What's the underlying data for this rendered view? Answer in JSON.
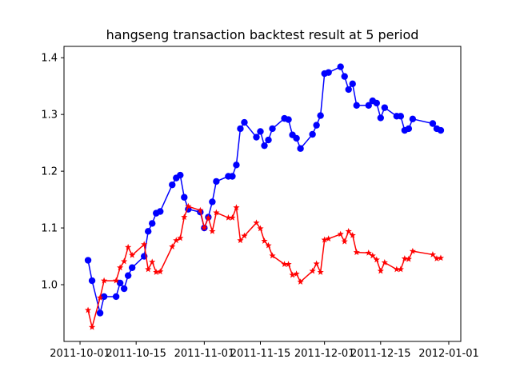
{
  "chart_data": {
    "type": "line",
    "title": "hangseng transaction backtest result at 5 period",
    "xlabel": "",
    "ylabel": "",
    "x_axis": "date",
    "xlim": [
      "2011-09-27",
      "2012-01-04"
    ],
    "ylim": [
      0.9,
      1.42
    ],
    "xticks": [
      {
        "value": "2011-10-01",
        "label": "2011-10-01"
      },
      {
        "value": "2011-10-15",
        "label": "2011-10-15"
      },
      {
        "value": "2011-11-01",
        "label": "2011-11-01"
      },
      {
        "value": "2011-11-15",
        "label": "2011-11-15"
      },
      {
        "value": "2011-12-01",
        "label": "2011-12-01"
      },
      {
        "value": "2011-12-15",
        "label": "2011-12-15"
      },
      {
        "value": "2012-01-01",
        "label": "2012-01-01"
      }
    ],
    "yticks": [
      {
        "value": 1.0,
        "label": "1.0"
      },
      {
        "value": 1.1,
        "label": "1.1"
      },
      {
        "value": 1.2,
        "label": "1.2"
      },
      {
        "value": 1.3,
        "label": "1.3"
      },
      {
        "value": 1.4,
        "label": "1.4"
      }
    ],
    "grid": false,
    "legend": "none",
    "series": [
      {
        "color": "#0000ff",
        "marker": "circle",
        "points": [
          [
            "2011-10-03",
            1.043
          ],
          [
            "2011-10-04",
            1.007
          ],
          [
            "2011-10-06",
            0.95
          ],
          [
            "2011-10-07",
            0.979
          ],
          [
            "2011-10-10",
            0.979
          ],
          [
            "2011-10-11",
            1.003
          ],
          [
            "2011-10-12",
            0.993
          ],
          [
            "2011-10-13",
            1.016
          ],
          [
            "2011-10-14",
            1.03
          ],
          [
            "2011-10-17",
            1.05
          ],
          [
            "2011-10-18",
            1.094
          ],
          [
            "2011-10-19",
            1.108
          ],
          [
            "2011-10-20",
            1.126
          ],
          [
            "2011-10-21",
            1.129
          ],
          [
            "2011-10-24",
            1.176
          ],
          [
            "2011-10-25",
            1.188
          ],
          [
            "2011-10-26",
            1.193
          ],
          [
            "2011-10-27",
            1.154
          ],
          [
            "2011-10-28",
            1.133
          ],
          [
            "2011-10-31",
            1.128
          ],
          [
            "2011-11-01",
            1.1
          ],
          [
            "2011-11-02",
            1.119
          ],
          [
            "2011-11-03",
            1.146
          ],
          [
            "2011-11-04",
            1.182
          ],
          [
            "2011-11-07",
            1.191
          ],
          [
            "2011-11-08",
            1.191
          ],
          [
            "2011-11-09",
            1.211
          ],
          [
            "2011-11-10",
            1.275
          ],
          [
            "2011-11-11",
            1.286
          ],
          [
            "2011-11-14",
            1.26
          ],
          [
            "2011-11-15",
            1.27
          ],
          [
            "2011-11-16",
            1.245
          ],
          [
            "2011-11-17",
            1.255
          ],
          [
            "2011-11-18",
            1.275
          ],
          [
            "2011-11-21",
            1.293
          ],
          [
            "2011-11-22",
            1.291
          ],
          [
            "2011-11-23",
            1.264
          ],
          [
            "2011-11-24",
            1.258
          ],
          [
            "2011-11-25",
            1.24
          ],
          [
            "2011-11-28",
            1.265
          ],
          [
            "2011-11-29",
            1.281
          ],
          [
            "2011-11-30",
            1.298
          ],
          [
            "2011-12-01",
            1.372
          ],
          [
            "2011-12-02",
            1.374
          ],
          [
            "2011-12-05",
            1.384
          ],
          [
            "2011-12-06",
            1.367
          ],
          [
            "2011-12-07",
            1.344
          ],
          [
            "2011-12-08",
            1.354
          ],
          [
            "2011-12-09",
            1.316
          ],
          [
            "2011-12-12",
            1.316
          ],
          [
            "2011-12-13",
            1.324
          ],
          [
            "2011-12-14",
            1.32
          ],
          [
            "2011-12-15",
            1.294
          ],
          [
            "2011-12-16",
            1.312
          ],
          [
            "2011-12-19",
            1.297
          ],
          [
            "2011-12-20",
            1.297
          ],
          [
            "2011-12-21",
            1.272
          ],
          [
            "2011-12-22",
            1.275
          ],
          [
            "2011-12-23",
            1.292
          ],
          [
            "2011-12-28",
            1.284
          ],
          [
            "2011-12-29",
            1.275
          ],
          [
            "2011-12-30",
            1.272
          ]
        ]
      },
      {
        "color": "#ff0000",
        "marker": "star",
        "points": [
          [
            "2011-10-03",
            0.955
          ],
          [
            "2011-10-04",
            0.925
          ],
          [
            "2011-10-06",
            0.977
          ],
          [
            "2011-10-07",
            1.007
          ],
          [
            "2011-10-10",
            1.007
          ],
          [
            "2011-10-11",
            1.03
          ],
          [
            "2011-10-12",
            1.041
          ],
          [
            "2011-10-13",
            1.066
          ],
          [
            "2011-10-14",
            1.052
          ],
          [
            "2011-10-17",
            1.071
          ],
          [
            "2011-10-18",
            1.027
          ],
          [
            "2011-10-19",
            1.04
          ],
          [
            "2011-10-20",
            1.022
          ],
          [
            "2011-10-21",
            1.023
          ],
          [
            "2011-10-24",
            1.067
          ],
          [
            "2011-10-25",
            1.078
          ],
          [
            "2011-10-26",
            1.082
          ],
          [
            "2011-10-27",
            1.119
          ],
          [
            "2011-10-28",
            1.138
          ],
          [
            "2011-10-31",
            1.131
          ],
          [
            "2011-11-01",
            1.1
          ],
          [
            "2011-11-02",
            1.118
          ],
          [
            "2011-11-03",
            1.094
          ],
          [
            "2011-11-04",
            1.127
          ],
          [
            "2011-11-07",
            1.118
          ],
          [
            "2011-11-08",
            1.118
          ],
          [
            "2011-11-09",
            1.136
          ],
          [
            "2011-11-10",
            1.078
          ],
          [
            "2011-11-11",
            1.086
          ],
          [
            "2011-11-14",
            1.109
          ],
          [
            "2011-11-15",
            1.099
          ],
          [
            "2011-11-16",
            1.077
          ],
          [
            "2011-11-17",
            1.069
          ],
          [
            "2011-11-18",
            1.051
          ],
          [
            "2011-11-21",
            1.036
          ],
          [
            "2011-11-22",
            1.036
          ],
          [
            "2011-11-23",
            1.017
          ],
          [
            "2011-11-24",
            1.019
          ],
          [
            "2011-11-25",
            1.005
          ],
          [
            "2011-11-28",
            1.024
          ],
          [
            "2011-11-29",
            1.037
          ],
          [
            "2011-11-30",
            1.022
          ],
          [
            "2011-12-01",
            1.079
          ],
          [
            "2011-12-02",
            1.081
          ],
          [
            "2011-12-05",
            1.089
          ],
          [
            "2011-12-06",
            1.076
          ],
          [
            "2011-12-07",
            1.094
          ],
          [
            "2011-12-08",
            1.087
          ],
          [
            "2011-12-09",
            1.057
          ],
          [
            "2011-12-12",
            1.056
          ],
          [
            "2011-12-13",
            1.051
          ],
          [
            "2011-12-14",
            1.044
          ],
          [
            "2011-12-15",
            1.024
          ],
          [
            "2011-12-16",
            1.039
          ],
          [
            "2011-12-19",
            1.027
          ],
          [
            "2011-12-20",
            1.027
          ],
          [
            "2011-12-21",
            1.046
          ],
          [
            "2011-12-22",
            1.045
          ],
          [
            "2011-12-23",
            1.059
          ],
          [
            "2011-12-28",
            1.053
          ],
          [
            "2011-12-29",
            1.046
          ],
          [
            "2011-12-30",
            1.047
          ]
        ]
      }
    ]
  }
}
